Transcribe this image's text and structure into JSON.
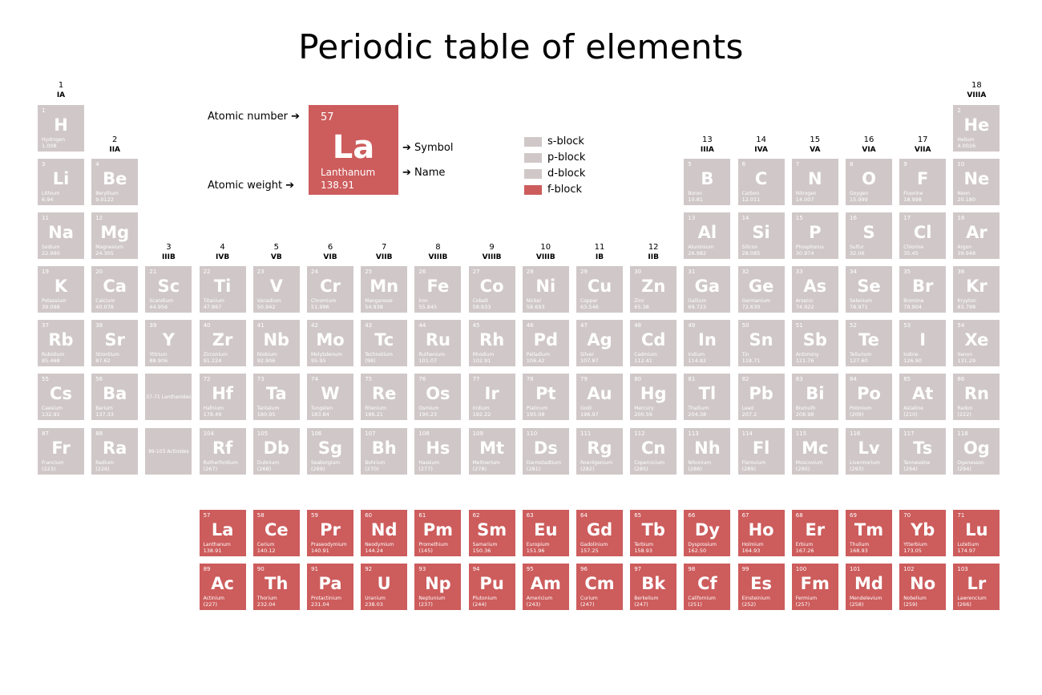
{
  "title": "Periodic table of elements",
  "colors": {
    "block": "#d0c8c8",
    "f_block": "#cd5c5c"
  },
  "example": {
    "number": "57",
    "symbol": "La",
    "name": "Lanthanum",
    "weight": "138.91",
    "label_number": "Atomic number",
    "label_weight": "Atomic weight",
    "label_symbol": "Symbol",
    "label_name": "Name"
  },
  "legend": [
    {
      "label": "s-block",
      "color": "#d0c8c8"
    },
    {
      "label": "p-block",
      "color": "#d0c8c8"
    },
    {
      "label": "d-block",
      "color": "#d0c8c8"
    },
    {
      "label": "f-block",
      "color": "#cd5c5c"
    }
  ],
  "groups": [
    {
      "col": 1,
      "num": "1",
      "roman": "IA"
    },
    {
      "col": 2,
      "num": "2",
      "roman": "IIA"
    },
    {
      "col": 3,
      "num": "3",
      "roman": "IIIB"
    },
    {
      "col": 4,
      "num": "4",
      "roman": "IVB"
    },
    {
      "col": 5,
      "num": "5",
      "roman": "VB"
    },
    {
      "col": 6,
      "num": "6",
      "roman": "VIB"
    },
    {
      "col": 7,
      "num": "7",
      "roman": "VIIB"
    },
    {
      "col": 8,
      "num": "8",
      "roman": "VIIIB"
    },
    {
      "col": 9,
      "num": "9",
      "roman": "VIIIB"
    },
    {
      "col": 10,
      "num": "10",
      "roman": "VIIIB"
    },
    {
      "col": 11,
      "num": "11",
      "roman": "IB"
    },
    {
      "col": 12,
      "num": "12",
      "roman": "IIB"
    },
    {
      "col": 13,
      "num": "13",
      "roman": "IIIA"
    },
    {
      "col": 14,
      "num": "14",
      "roman": "IVA"
    },
    {
      "col": 15,
      "num": "15",
      "roman": "VA"
    },
    {
      "col": 16,
      "num": "16",
      "roman": "VIA"
    },
    {
      "col": 17,
      "num": "17",
      "roman": "VIIA"
    },
    {
      "col": 18,
      "num": "18",
      "roman": "VIIIA"
    }
  ],
  "elements": [
    {
      "n": "1",
      "s": "H",
      "name": "Hydrogen",
      "w": "1.008",
      "row": 1,
      "col": 1
    },
    {
      "n": "2",
      "s": "He",
      "name": "Helium",
      "w": "4.0026",
      "row": 1,
      "col": 18
    },
    {
      "n": "3",
      "s": "Li",
      "name": "Lithium",
      "w": "6.94",
      "row": 2,
      "col": 1
    },
    {
      "n": "4",
      "s": "Be",
      "name": "Beryllium",
      "w": "9.0122",
      "row": 2,
      "col": 2
    },
    {
      "n": "5",
      "s": "B",
      "name": "Boron",
      "w": "10.81",
      "row": 2,
      "col": 13
    },
    {
      "n": "6",
      "s": "C",
      "name": "Carbon",
      "w": "12.011",
      "row": 2,
      "col": 14
    },
    {
      "n": "7",
      "s": "N",
      "name": "Nitrogen",
      "w": "14.007",
      "row": 2,
      "col": 15
    },
    {
      "n": "8",
      "s": "O",
      "name": "Oxygen",
      "w": "15.999",
      "row": 2,
      "col": 16
    },
    {
      "n": "9",
      "s": "F",
      "name": "Fluorine",
      "w": "18.998",
      "row": 2,
      "col": 17
    },
    {
      "n": "10",
      "s": "Ne",
      "name": "Neon",
      "w": "20.180",
      "row": 2,
      "col": 18
    },
    {
      "n": "11",
      "s": "Na",
      "name": "Sodium",
      "w": "22.990",
      "row": 3,
      "col": 1
    },
    {
      "n": "12",
      "s": "Mg",
      "name": "Magnesium",
      "w": "24.305",
      "row": 3,
      "col": 2
    },
    {
      "n": "13",
      "s": "Al",
      "name": "Aluminium",
      "w": "26.982",
      "row": 3,
      "col": 13
    },
    {
      "n": "14",
      "s": "Si",
      "name": "Silicon",
      "w": "28.085",
      "row": 3,
      "col": 14
    },
    {
      "n": "15",
      "s": "P",
      "name": "Phosphorus",
      "w": "30.974",
      "row": 3,
      "col": 15
    },
    {
      "n": "16",
      "s": "S",
      "name": "Sulfur",
      "w": "32.06",
      "row": 3,
      "col": 16
    },
    {
      "n": "17",
      "s": "Cl",
      "name": "Chlorine",
      "w": "35.45",
      "row": 3,
      "col": 17
    },
    {
      "n": "18",
      "s": "Ar",
      "name": "Argon",
      "w": "39.948",
      "row": 3,
      "col": 18
    },
    {
      "n": "19",
      "s": "K",
      "name": "Potassium",
      "w": "39.098",
      "row": 4,
      "col": 1
    },
    {
      "n": "20",
      "s": "Ca",
      "name": "Calcium",
      "w": "40.078",
      "row": 4,
      "col": 2
    },
    {
      "n": "21",
      "s": "Sc",
      "name": "Scandium",
      "w": "44.956",
      "row": 4,
      "col": 3
    },
    {
      "n": "22",
      "s": "Ti",
      "name": "Titanium",
      "w": "47.867",
      "row": 4,
      "col": 4
    },
    {
      "n": "23",
      "s": "V",
      "name": "Vanadium",
      "w": "50.942",
      "row": 4,
      "col": 5
    },
    {
      "n": "24",
      "s": "Cr",
      "name": "Chromium",
      "w": "51.996",
      "row": 4,
      "col": 6
    },
    {
      "n": "25",
      "s": "Mn",
      "name": "Manganese",
      "w": "54.938",
      "row": 4,
      "col": 7
    },
    {
      "n": "26",
      "s": "Fe",
      "name": "Iron",
      "w": "55.845",
      "row": 4,
      "col": 8
    },
    {
      "n": "27",
      "s": "Co",
      "name": "Cobalt",
      "w": "58.933",
      "row": 4,
      "col": 9
    },
    {
      "n": "28",
      "s": "Ni",
      "name": "Nickel",
      "w": "58.693",
      "row": 4,
      "col": 10
    },
    {
      "n": "29",
      "s": "Cu",
      "name": "Copper",
      "w": "63.546",
      "row": 4,
      "col": 11
    },
    {
      "n": "30",
      "s": "Zn",
      "name": "Zinc",
      "w": "65.38",
      "row": 4,
      "col": 12
    },
    {
      "n": "31",
      "s": "Ga",
      "name": "Gallium",
      "w": "69.723",
      "row": 4,
      "col": 13
    },
    {
      "n": "32",
      "s": "Ge",
      "name": "Germanium",
      "w": "72.630",
      "row": 4,
      "col": 14
    },
    {
      "n": "33",
      "s": "As",
      "name": "Arsenic",
      "w": "74.922",
      "row": 4,
      "col": 15
    },
    {
      "n": "34",
      "s": "Se",
      "name": "Selenium",
      "w": "78.971",
      "row": 4,
      "col": 16
    },
    {
      "n": "35",
      "s": "Br",
      "name": "Bromine",
      "w": "79.904",
      "row": 4,
      "col": 17
    },
    {
      "n": "36",
      "s": "Kr",
      "name": "Krypton",
      "w": "83.798",
      "row": 4,
      "col": 18
    },
    {
      "n": "37",
      "s": "Rb",
      "name": "Rubidium",
      "w": "85.468",
      "row": 5,
      "col": 1
    },
    {
      "n": "38",
      "s": "Sr",
      "name": "Strontium",
      "w": "87.62",
      "row": 5,
      "col": 2
    },
    {
      "n": "39",
      "s": "Y",
      "name": "Yttrium",
      "w": "88.906",
      "row": 5,
      "col": 3
    },
    {
      "n": "40",
      "s": "Zr",
      "name": "Zirconium",
      "w": "91.224",
      "row": 5,
      "col": 4
    },
    {
      "n": "41",
      "s": "Nb",
      "name": "Niobium",
      "w": "92.906",
      "row": 5,
      "col": 5
    },
    {
      "n": "42",
      "s": "Mo",
      "name": "Molybdenum",
      "w": "95.95",
      "row": 5,
      "col": 6
    },
    {
      "n": "43",
      "s": "Tc",
      "name": "Technetium",
      "w": "(98)",
      "row": 5,
      "col": 7
    },
    {
      "n": "44",
      "s": "Ru",
      "name": "Ruthenium",
      "w": "101.07",
      "row": 5,
      "col": 8
    },
    {
      "n": "45",
      "s": "Rh",
      "name": "Rhodium",
      "w": "102.91",
      "row": 5,
      "col": 9
    },
    {
      "n": "46",
      "s": "Pd",
      "name": "Palladium",
      "w": "106.42",
      "row": 5,
      "col": 10
    },
    {
      "n": "47",
      "s": "Ag",
      "name": "Silver",
      "w": "107.87",
      "row": 5,
      "col": 11
    },
    {
      "n": "48",
      "s": "Cd",
      "name": "Cadmium",
      "w": "112.41",
      "row": 5,
      "col": 12
    },
    {
      "n": "49",
      "s": "In",
      "name": "Indium",
      "w": "114.82",
      "row": 5,
      "col": 13
    },
    {
      "n": "50",
      "s": "Sn",
      "name": "Tin",
      "w": "118.71",
      "row": 5,
      "col": 14
    },
    {
      "n": "51",
      "s": "Sb",
      "name": "Antimony",
      "w": "121.76",
      "row": 5,
      "col": 15
    },
    {
      "n": "52",
      "s": "Te",
      "name": "Tellurium",
      "w": "127.60",
      "row": 5,
      "col": 16
    },
    {
      "n": "53",
      "s": "I",
      "name": "Iodine",
      "w": "126.90",
      "row": 5,
      "col": 17
    },
    {
      "n": "54",
      "s": "Xe",
      "name": "Xenon",
      "w": "131.29",
      "row": 5,
      "col": 18
    },
    {
      "n": "55",
      "s": "Cs",
      "name": "Caesium",
      "w": "132.91",
      "row": 6,
      "col": 1
    },
    {
      "n": "56",
      "s": "Ba",
      "name": "Barium",
      "w": "137.33",
      "row": 6,
      "col": 2
    },
    {
      "n": "",
      "s": "",
      "name": "57-71 Lanthanides",
      "w": "",
      "row": 6,
      "col": 3,
      "ph": true
    },
    {
      "n": "72",
      "s": "Hf",
      "name": "Hafnium",
      "w": "178.49",
      "row": 6,
      "col": 4
    },
    {
      "n": "73",
      "s": "Ta",
      "name": "Tantalum",
      "w": "180.95",
      "row": 6,
      "col": 5
    },
    {
      "n": "74",
      "s": "W",
      "name": "Tungsten",
      "w": "183.84",
      "row": 6,
      "col": 6
    },
    {
      "n": "75",
      "s": "Re",
      "name": "Rhenium",
      "w": "186.21",
      "row": 6,
      "col": 7
    },
    {
      "n": "76",
      "s": "Os",
      "name": "Osmium",
      "w": "190.23",
      "row": 6,
      "col": 8
    },
    {
      "n": "77",
      "s": "Ir",
      "name": "Iridium",
      "w": "192.22",
      "row": 6,
      "col": 9
    },
    {
      "n": "78",
      "s": "Pt",
      "name": "Platinum",
      "w": "195.08",
      "row": 6,
      "col": 10
    },
    {
      "n": "79",
      "s": "Au",
      "name": "Gold",
      "w": "196.97",
      "row": 6,
      "col": 11
    },
    {
      "n": "80",
      "s": "Hg",
      "name": "Mercury",
      "w": "200.59",
      "row": 6,
      "col": 12
    },
    {
      "n": "81",
      "s": "Tl",
      "name": "Thallium",
      "w": "204.38",
      "row": 6,
      "col": 13
    },
    {
      "n": "82",
      "s": "Pb",
      "name": "Lead",
      "w": "207.2",
      "row": 6,
      "col": 14
    },
    {
      "n": "83",
      "s": "Bi",
      "name": "Bismuth",
      "w": "208.98",
      "row": 6,
      "col": 15
    },
    {
      "n": "84",
      "s": "Po",
      "name": "Polonium",
      "w": "(209)",
      "row": 6,
      "col": 16
    },
    {
      "n": "85",
      "s": "At",
      "name": "Astatine",
      "w": "(210)",
      "row": 6,
      "col": 17
    },
    {
      "n": "86",
      "s": "Rn",
      "name": "Radon",
      "w": "(222)",
      "row": 6,
      "col": 18
    },
    {
      "n": "87",
      "s": "Fr",
      "name": "Francium",
      "w": "(223)",
      "row": 7,
      "col": 1
    },
    {
      "n": "88",
      "s": "Ra",
      "name": "Radium",
      "w": "(226)",
      "row": 7,
      "col": 2
    },
    {
      "n": "",
      "s": "",
      "name": "89-103 Actinides",
      "w": "",
      "row": 7,
      "col": 3,
      "ph": true
    },
    {
      "n": "104",
      "s": "Rf",
      "name": "Rutherfordium",
      "w": "(267)",
      "row": 7,
      "col": 4
    },
    {
      "n": "105",
      "s": "Db",
      "name": "Dubnium",
      "w": "(268)",
      "row": 7,
      "col": 5
    },
    {
      "n": "106",
      "s": "Sg",
      "name": "Seaborgium",
      "w": "(269)",
      "row": 7,
      "col": 6
    },
    {
      "n": "107",
      "s": "Bh",
      "name": "Bohrium",
      "w": "(270)",
      "row": 7,
      "col": 7
    },
    {
      "n": "108",
      "s": "Hs",
      "name": "Hassium",
      "w": "(277)",
      "row": 7,
      "col": 8
    },
    {
      "n": "109",
      "s": "Mt",
      "name": "Meitnerium",
      "w": "(278)",
      "row": 7,
      "col": 9
    },
    {
      "n": "110",
      "s": "Ds",
      "name": "Darmstadtium",
      "w": "(281)",
      "row": 7,
      "col": 10
    },
    {
      "n": "111",
      "s": "Rg",
      "name": "Roentgenium",
      "w": "(282)",
      "row": 7,
      "col": 11
    },
    {
      "n": "112",
      "s": "Cn",
      "name": "Copernicium",
      "w": "(285)",
      "row": 7,
      "col": 12
    },
    {
      "n": "113",
      "s": "Nh",
      "name": "Nihonium",
      "w": "(286)",
      "row": 7,
      "col": 13
    },
    {
      "n": "114",
      "s": "Fl",
      "name": "Flerovium",
      "w": "(289)",
      "row": 7,
      "col": 14
    },
    {
      "n": "115",
      "s": "Mc",
      "name": "Moscovium",
      "w": "(290)",
      "row": 7,
      "col": 15
    },
    {
      "n": "116",
      "s": "Lv",
      "name": "Livermorium",
      "w": "(293)",
      "row": 7,
      "col": 16
    },
    {
      "n": "117",
      "s": "Ts",
      "name": "Tennessine",
      "w": "(294)",
      "row": 7,
      "col": 17
    },
    {
      "n": "118",
      "s": "Og",
      "name": "Oganesson",
      "w": "(294)",
      "row": 7,
      "col": 18
    },
    {
      "n": "57",
      "s": "La",
      "name": "Lanthanum",
      "w": "138.91",
      "row": 9,
      "col": 4,
      "f": true
    },
    {
      "n": "58",
      "s": "Ce",
      "name": "Cerium",
      "w": "140.12",
      "row": 9,
      "col": 5,
      "f": true
    },
    {
      "n": "59",
      "s": "Pr",
      "name": "Praseodymium",
      "w": "140.91",
      "row": 9,
      "col": 6,
      "f": true
    },
    {
      "n": "60",
      "s": "Nd",
      "name": "Neodymium",
      "w": "144.24",
      "row": 9,
      "col": 7,
      "f": true
    },
    {
      "n": "61",
      "s": "Pm",
      "name": "Promethium",
      "w": "(145)",
      "row": 9,
      "col": 8,
      "f": true
    },
    {
      "n": "62",
      "s": "Sm",
      "name": "Samarium",
      "w": "150.36",
      "row": 9,
      "col": 9,
      "f": true
    },
    {
      "n": "63",
      "s": "Eu",
      "name": "Europium",
      "w": "151.96",
      "row": 9,
      "col": 10,
      "f": true
    },
    {
      "n": "64",
      "s": "Gd",
      "name": "Gadolinium",
      "w": "157.25",
      "row": 9,
      "col": 11,
      "f": true
    },
    {
      "n": "65",
      "s": "Tb",
      "name": "Terbium",
      "w": "158.93",
      "row": 9,
      "col": 12,
      "f": true
    },
    {
      "n": "66",
      "s": "Dy",
      "name": "Dysprosium",
      "w": "162.50",
      "row": 9,
      "col": 13,
      "f": true
    },
    {
      "n": "67",
      "s": "Ho",
      "name": "Holmium",
      "w": "164.93",
      "row": 9,
      "col": 14,
      "f": true
    },
    {
      "n": "68",
      "s": "Er",
      "name": "Erbium",
      "w": "167.26",
      "row": 9,
      "col": 15,
      "f": true
    },
    {
      "n": "69",
      "s": "Tm",
      "name": "Thulium",
      "w": "168.93",
      "row": 9,
      "col": 16,
      "f": true
    },
    {
      "n": "70",
      "s": "Yb",
      "name": "Ytterbium",
      "w": "173.05",
      "row": 9,
      "col": 17,
      "f": true
    },
    {
      "n": "71",
      "s": "Lu",
      "name": "Lutetium",
      "w": "174.97",
      "row": 9,
      "col": 18,
      "f": true
    },
    {
      "n": "89",
      "s": "Ac",
      "name": "Actinium",
      "w": "(227)",
      "row": 10,
      "col": 4,
      "f": true
    },
    {
      "n": "90",
      "s": "Th",
      "name": "Thorium",
      "w": "232.04",
      "row": 10,
      "col": 5,
      "f": true
    },
    {
      "n": "91",
      "s": "Pa",
      "name": "Protactinium",
      "w": "231.04",
      "row": 10,
      "col": 6,
      "f": true
    },
    {
      "n": "92",
      "s": "U",
      "name": "Uranium",
      "w": "238.03",
      "row": 10,
      "col": 7,
      "f": true
    },
    {
      "n": "93",
      "s": "Np",
      "name": "Neptunium",
      "w": "(237)",
      "row": 10,
      "col": 8,
      "f": true
    },
    {
      "n": "94",
      "s": "Pu",
      "name": "Plutonium",
      "w": "(244)",
      "row": 10,
      "col": 9,
      "f": true
    },
    {
      "n": "95",
      "s": "Am",
      "name": "Americium",
      "w": "(243)",
      "row": 10,
      "col": 10,
      "f": true
    },
    {
      "n": "96",
      "s": "Cm",
      "name": "Curium",
      "w": "(247)",
      "row": 10,
      "col": 11,
      "f": true
    },
    {
      "n": "97",
      "s": "Bk",
      "name": "Berkelium",
      "w": "(247)",
      "row": 10,
      "col": 12,
      "f": true
    },
    {
      "n": "98",
      "s": "Cf",
      "name": "Californium",
      "w": "(251)",
      "row": 10,
      "col": 13,
      "f": true
    },
    {
      "n": "99",
      "s": "Es",
      "name": "Einsteinium",
      "w": "(252)",
      "row": 10,
      "col": 14,
      "f": true
    },
    {
      "n": "100",
      "s": "Fm",
      "name": "Fermium",
      "w": "(257)",
      "row": 10,
      "col": 15,
      "f": true
    },
    {
      "n": "101",
      "s": "Md",
      "name": "Mendelevium",
      "w": "(258)",
      "row": 10,
      "col": 16,
      "f": true
    },
    {
      "n": "102",
      "s": "No",
      "name": "Nobelium",
      "w": "(259)",
      "row": 10,
      "col": 17,
      "f": true
    },
    {
      "n": "103",
      "s": "Lr",
      "name": "Lawrencium",
      "w": "(266)",
      "row": 10,
      "col": 18,
      "f": true
    }
  ]
}
